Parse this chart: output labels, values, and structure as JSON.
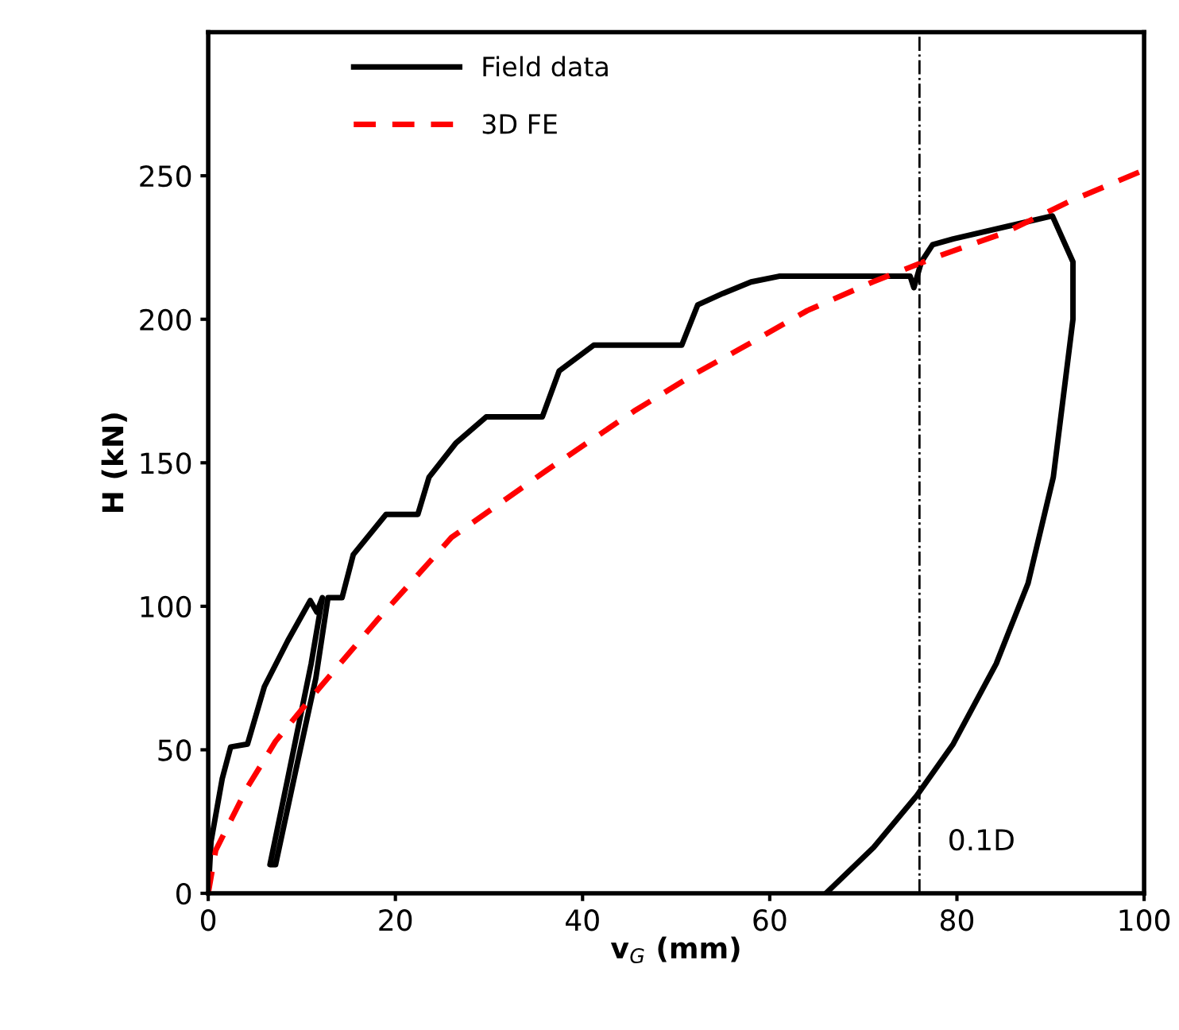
{
  "chart_data": {
    "type": "line",
    "xlabel": "v$_{G}$ (mm)",
    "ylabel": "H (kN)",
    "xlim": [
      0,
      100
    ],
    "ylim": [
      0,
      300
    ],
    "xticks": [
      0,
      20,
      40,
      60,
      80,
      100
    ],
    "yticks": [
      0,
      50,
      100,
      150,
      200,
      250
    ],
    "grid": false,
    "legend": "top left",
    "marker": "none",
    "series": [
      {
        "name": "Field data",
        "color": "#000000",
        "line_style": "solid",
        "x": [
          0,
          0.3,
          1.5,
          2.4,
          4.2,
          6.0,
          8.5,
          10.9,
          11.6,
          12.2,
          11.0,
          8.5,
          6.6,
          7.2,
          9.5,
          11.5,
          12.8,
          14.3,
          15.5,
          19.0,
          22.4,
          23.6,
          26.5,
          29.7,
          35.7,
          37.5,
          41.2,
          50.6,
          52.3,
          55,
          58,
          61,
          75,
          75.4,
          76.2,
          77.4,
          79.6,
          90.2,
          92.4,
          92.4,
          90.3,
          87.6,
          84.2,
          79.6,
          75.7,
          71.1,
          66
        ],
        "values": [
          0,
          18,
          40,
          51,
          52,
          72,
          88,
          102,
          98,
          103,
          80,
          40,
          10,
          10,
          45,
          75,
          103,
          103,
          118,
          132,
          132,
          145,
          157,
          166,
          166,
          182,
          191,
          191,
          205,
          209,
          213,
          215,
          215,
          211,
          220,
          226,
          228,
          236,
          220,
          200,
          145,
          108,
          80,
          52,
          34,
          16,
          0
        ]
      },
      {
        "name": "3D FE",
        "color": "#ff0000",
        "line_style": "dashed",
        "x": [
          0,
          0.8,
          4.2,
          7.2,
          12,
          18,
          26,
          36,
          45.5,
          52,
          57,
          64,
          71,
          78,
          85,
          92,
          100
        ],
        "values": [
          0,
          15,
          37,
          53,
          72,
          95,
          124,
          147,
          168,
          181,
          190,
          203,
          213,
          222,
          230,
          241,
          252
        ]
      }
    ],
    "ref_lines": [
      {
        "axis": "x",
        "value": 76,
        "label": "0.1D",
        "color": "#000000",
        "line_style": "dashdot"
      }
    ]
  }
}
